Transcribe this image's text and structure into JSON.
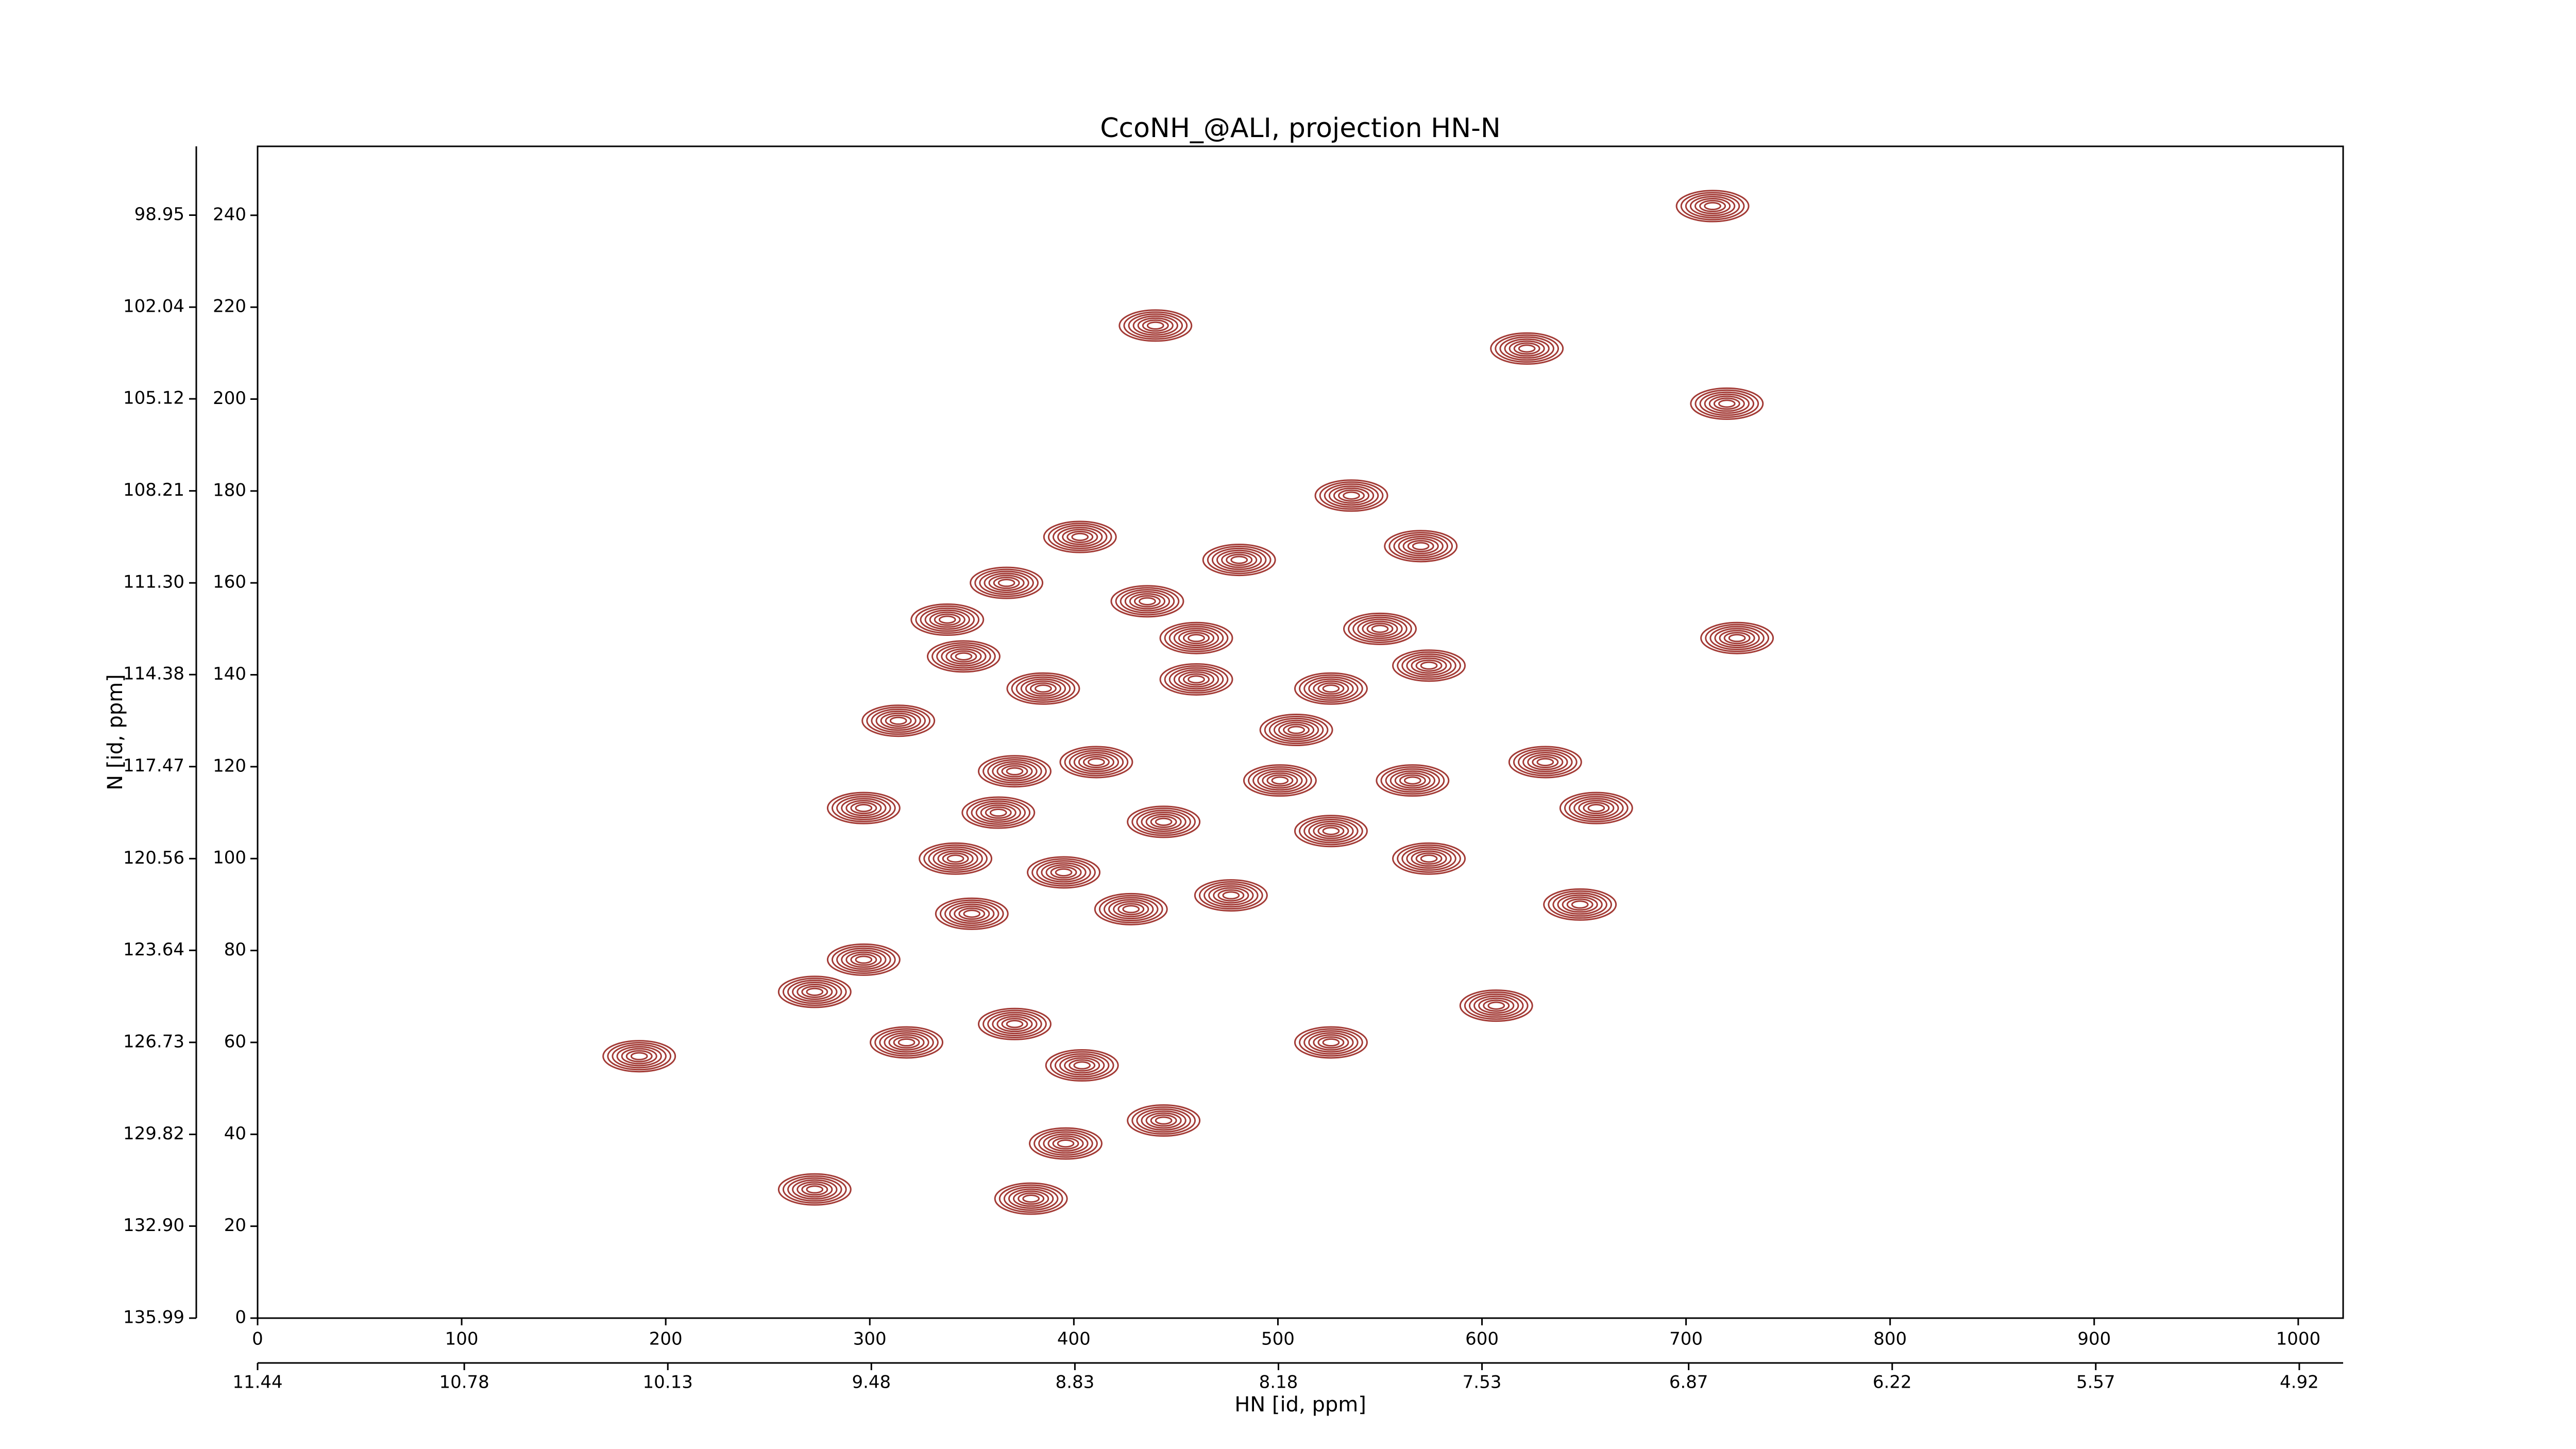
{
  "chart_data": {
    "type": "contour",
    "title": "CcoNH_@ALI, projection HN-N",
    "xlabel": "HN [id, ppm]",
    "ylabel": "N [id, ppm]",
    "xlim": [
      0,
      1022
    ],
    "xticks": [
      0,
      100,
      200,
      300,
      400,
      500,
      600,
      700,
      800,
      900,
      1000
    ],
    "ylim": [
      0,
      255
    ],
    "yticks": [
      0,
      20,
      40,
      60,
      80,
      100,
      120,
      140,
      160,
      180,
      200,
      220,
      240
    ],
    "x2lim": [
      11.44,
      4.78
    ],
    "x2ticks": [
      11.44,
      10.78,
      10.13,
      9.48,
      8.83,
      8.18,
      7.53,
      6.87,
      6.22,
      5.57,
      4.92
    ],
    "y2lim": [
      135.99,
      96.64
    ],
    "y2ticks": [
      135.99,
      {
        "value": 132.9,
        "label": "132.90"
      },
      129.82,
      126.73,
      123.64,
      120.56,
      117.47,
      114.38,
      {
        "value": 111.3,
        "label": "111.30"
      },
      108.21,
      105.12,
      102.04,
      98.95
    ],
    "color": "#a33b36",
    "peaks": {
      "x": [
        713,
        440,
        622,
        720,
        536,
        403,
        367,
        436,
        481,
        570,
        338,
        346,
        550,
        460,
        725,
        385,
        460,
        526,
        574,
        314,
        509,
        371,
        411,
        631,
        297,
        363,
        444,
        656,
        342,
        395,
        526,
        574,
        477,
        350,
        428,
        648,
        297,
        273,
        371,
        318,
        404,
        526,
        607,
        187,
        444,
        396,
        273,
        379,
        501,
        566
      ],
      "y": [
        242,
        216,
        211,
        199,
        179,
        170,
        160,
        156,
        165,
        168,
        152,
        144,
        150,
        148,
        148,
        137,
        139,
        137,
        142,
        130,
        128,
        119,
        121,
        121,
        111,
        110,
        108,
        111,
        100,
        97,
        106,
        100,
        92,
        88,
        89,
        90,
        78,
        71,
        64,
        60,
        55,
        60,
        68,
        57,
        43,
        38,
        28,
        26,
        117,
        117
      ]
    }
  }
}
